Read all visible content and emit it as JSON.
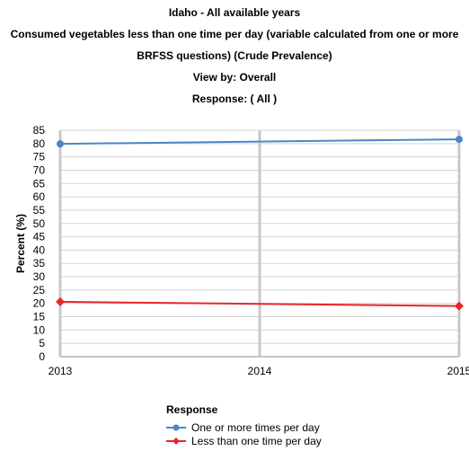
{
  "chart_data": {
    "type": "line",
    "title": "Idaho - All available years",
    "subtitle_lines": [
      "Consumed vegetables less than one time per day (variable calculated from one or more",
      "BRFSS questions) (Crude Prevalence)",
      "View by: Overall",
      "Response: ( All )"
    ],
    "xlabel": "",
    "ylabel": "Percent (%)",
    "x": [
      "2013",
      "2014",
      "2015"
    ],
    "ylim": [
      0,
      85
    ],
    "yticks": [
      0,
      5,
      10,
      15,
      20,
      25,
      30,
      35,
      40,
      45,
      50,
      55,
      60,
      65,
      70,
      75,
      80,
      85
    ],
    "grid": true,
    "legend_title": "Response",
    "legend_position": "bottom",
    "series": [
      {
        "name": "One or more times per day",
        "values": [
          79.9,
          null,
          81.6
        ],
        "color": "#4a86c8",
        "marker": "circle"
      },
      {
        "name": "Less than one time per day",
        "values": [
          20.6,
          null,
          19.0
        ],
        "color": "#e8262a",
        "marker": "diamond"
      }
    ]
  }
}
